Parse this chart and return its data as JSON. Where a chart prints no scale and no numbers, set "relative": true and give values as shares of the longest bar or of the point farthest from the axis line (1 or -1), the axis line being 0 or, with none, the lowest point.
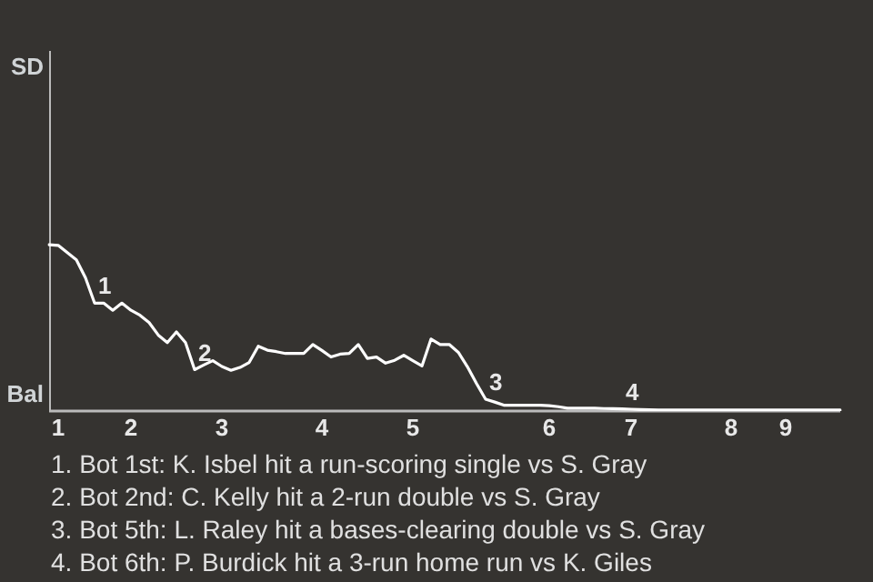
{
  "chart_data": {
    "type": "line",
    "relative": true,
    "categories": [
      null,
      "1",
      null,
      null,
      null,
      null,
      null,
      null,
      null,
      "2",
      null,
      null,
      null,
      null,
      null,
      null,
      null,
      null,
      null,
      "3",
      null,
      null,
      null,
      null,
      null,
      null,
      null,
      null,
      null,
      null,
      "4",
      null,
      null,
      null,
      null,
      null,
      null,
      null,
      null,
      null,
      "5",
      null,
      null,
      null,
      null,
      null,
      null,
      null,
      null,
      null,
      null,
      null,
      null,
      null,
      null,
      "6",
      null,
      null,
      null,
      null,
      null,
      null,
      null,
      null,
      "7",
      null,
      null,
      null,
      null,
      null,
      null,
      null,
      null,
      null,
      null,
      "8",
      null,
      null,
      null,
      null,
      null,
      "9",
      null,
      null,
      null,
      null,
      null,
      null
    ],
    "values": [
      1,
      0.996,
      0.952,
      0.909,
      0.801,
      0.649,
      0.649,
      0.606,
      0.649,
      0.606,
      0.576,
      0.532,
      0.457,
      0.411,
      0.476,
      0.411,
      0.249,
      0.277,
      0.303,
      0.268,
      0.245,
      0.262,
      0.292,
      0.39,
      0.366,
      0.357,
      0.346,
      0.346,
      0.346,
      0.4,
      0.364,
      0.325,
      0.342,
      0.346,
      0.4,
      0.316,
      0.325,
      0.288,
      0.305,
      0.335,
      0.303,
      0.271,
      0.433,
      0.4,
      0.4,
      0.353,
      0.266,
      0.165,
      0.071,
      0.054,
      0.035,
      0.035,
      0.035,
      0.035,
      0.035,
      0.032,
      0.026,
      0.017,
      0.017,
      0.017,
      0.017,
      0.015,
      0.014,
      0.013,
      0.011,
      0.009,
      0.008,
      0.006,
      0.006,
      0.006,
      0.006,
      0.006,
      0.006,
      0.006,
      0.006,
      0.006,
      0.006,
      0.006,
      0.006,
      0.006,
      0.006,
      0.006,
      0.006,
      0.006,
      0.006,
      0.006,
      0.006,
      0.006
    ],
    "color": "#ffffff",
    "legend": false,
    "marker": "none",
    "line_style": "solid",
    "annotations": [
      {
        "text": "SD"
      },
      {
        "text": "Bal"
      },
      {
        "text": "1",
        "y": 0.649
      },
      {
        "text": "2",
        "y": 0.249
      },
      {
        "text": "3",
        "y": 0.071
      },
      {
        "text": "4",
        "y": 0.013
      },
      "1. Bot 1st: K. Isbel hit a run-scoring single vs S. Gray",
      "2. Bot 2nd: C. Kelly hit a 2-run double vs S. Gray",
      "3. Bot 5th: L. Raley hit a bases-clearing double vs S. Gray",
      "4. Bot 6th: P. Burdick hit a 3-run home run vs K. Giles"
    ]
  }
}
